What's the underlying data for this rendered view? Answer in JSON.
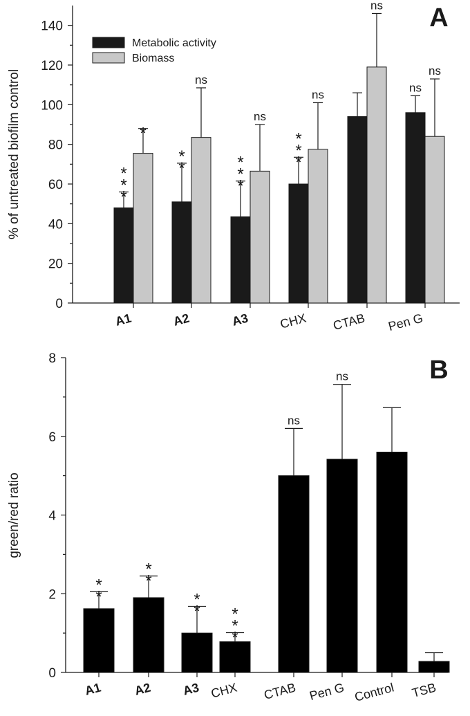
{
  "colors": {
    "metabolic": "#1a1a1a",
    "biomass": "#c8c8c8",
    "panelB": "#000000",
    "stroke": "#1a1a1a"
  },
  "chart_data": [
    {
      "type": "bar",
      "panel": "A",
      "title": "",
      "xlabel": "",
      "ylabel": "% of untreated biofilm control",
      "ylim": [
        0,
        150
      ],
      "yticks": [
        0,
        20,
        40,
        60,
        80,
        100,
        120,
        140
      ],
      "categories": [
        "A1",
        "A2",
        "A3",
        "CHX",
        "CTAB",
        "Pen G"
      ],
      "bold_categories": [
        "A1",
        "A2",
        "A3"
      ],
      "legend_position": "top-left",
      "series": [
        {
          "name": "Metabolic activity",
          "color_key": "metabolic",
          "values": [
            48,
            51,
            43.5,
            60,
            94,
            96
          ],
          "errors": [
            8,
            19.5,
            18,
            13.5,
            12,
            8.5
          ],
          "significance": [
            "***",
            "**",
            "***",
            "***",
            "",
            "ns"
          ]
        },
        {
          "name": "Biomass",
          "color_key": "biomass",
          "values": [
            75.5,
            83.5,
            66.5,
            77.5,
            119,
            84
          ],
          "errors": [
            12.5,
            25,
            23.5,
            23.5,
            27,
            29
          ],
          "significance": [
            "*",
            "ns",
            "ns",
            "ns",
            "ns",
            "ns"
          ]
        }
      ]
    },
    {
      "type": "bar",
      "panel": "B",
      "title": "",
      "xlabel": "",
      "ylabel": "green/red ratio",
      "ylim": [
        0,
        8
      ],
      "yticks": [
        0,
        2,
        4,
        6,
        8
      ],
      "categories": [
        "A1",
        "A2",
        "A3",
        "CHX",
        "CTAB",
        "Pen G",
        "Control",
        "TSB"
      ],
      "bold_categories": [
        "A1",
        "A2",
        "A3"
      ],
      "series": [
        {
          "name": "green/red ratio",
          "color_key": "panelB",
          "values": [
            1.62,
            1.9,
            1.0,
            0.78,
            5.0,
            5.42,
            5.6,
            0.28
          ],
          "errors": [
            0.43,
            0.55,
            0.68,
            0.23,
            1.2,
            1.9,
            1.13,
            0.22
          ],
          "significance": [
            "**",
            "**",
            "**",
            "***",
            "ns",
            "ns",
            "",
            ""
          ]
        }
      ]
    }
  ]
}
